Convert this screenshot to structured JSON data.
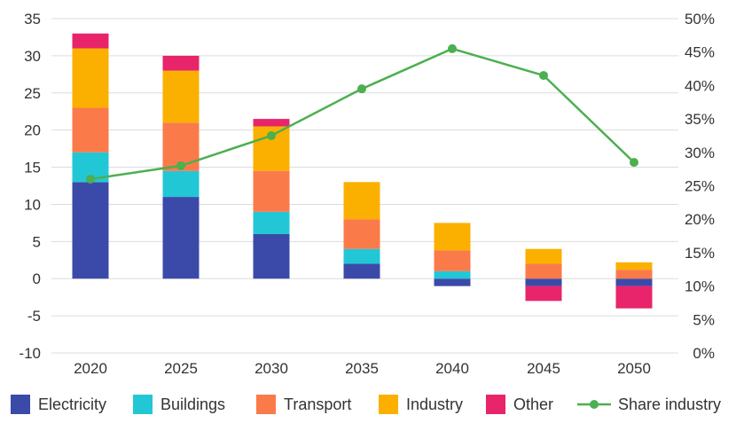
{
  "chart_data": {
    "type": "bar",
    "stacked": true,
    "categories": [
      "2020",
      "2025",
      "2030",
      "2035",
      "2040",
      "2045",
      "2050"
    ],
    "series": [
      {
        "name": "Electricity",
        "color": "#3b4aa8",
        "values": [
          13,
          11,
          6,
          2,
          -1,
          -1,
          -1
        ]
      },
      {
        "name": "Buildings",
        "color": "#22c7d6",
        "values": [
          4,
          3.5,
          3,
          2,
          1,
          0,
          0
        ]
      },
      {
        "name": "Transport",
        "color": "#fb7a4a",
        "values": [
          6,
          6.5,
          5.5,
          4,
          2.8,
          2,
          1.2
        ]
      },
      {
        "name": "Industry",
        "color": "#fbb000",
        "values": [
          8,
          7,
          6,
          5,
          3.7,
          2,
          1
        ]
      },
      {
        "name": "Other",
        "color": "#e8246b",
        "values": [
          2,
          2,
          1,
          0,
          0,
          -2,
          -3
        ]
      }
    ],
    "line_series": {
      "name": "Share industry",
      "color": "#4caf50",
      "axis": "right",
      "values": [
        26,
        28,
        32.5,
        39.5,
        45.5,
        41.5,
        28.5
      ]
    },
    "y_left": {
      "min": -10,
      "max": 35,
      "ticks": [
        "35",
        "30",
        "25",
        "20",
        "15",
        "10",
        "5",
        "0",
        "-5",
        "-10"
      ]
    },
    "y_right": {
      "min": 0,
      "max": 50,
      "ticks": [
        "50%",
        "45%",
        "40%",
        "35%",
        "30%",
        "25%",
        "20%",
        "15%",
        "10%",
        "5%",
        "0%"
      ]
    },
    "grid": true,
    "legend_position": "bottom"
  }
}
